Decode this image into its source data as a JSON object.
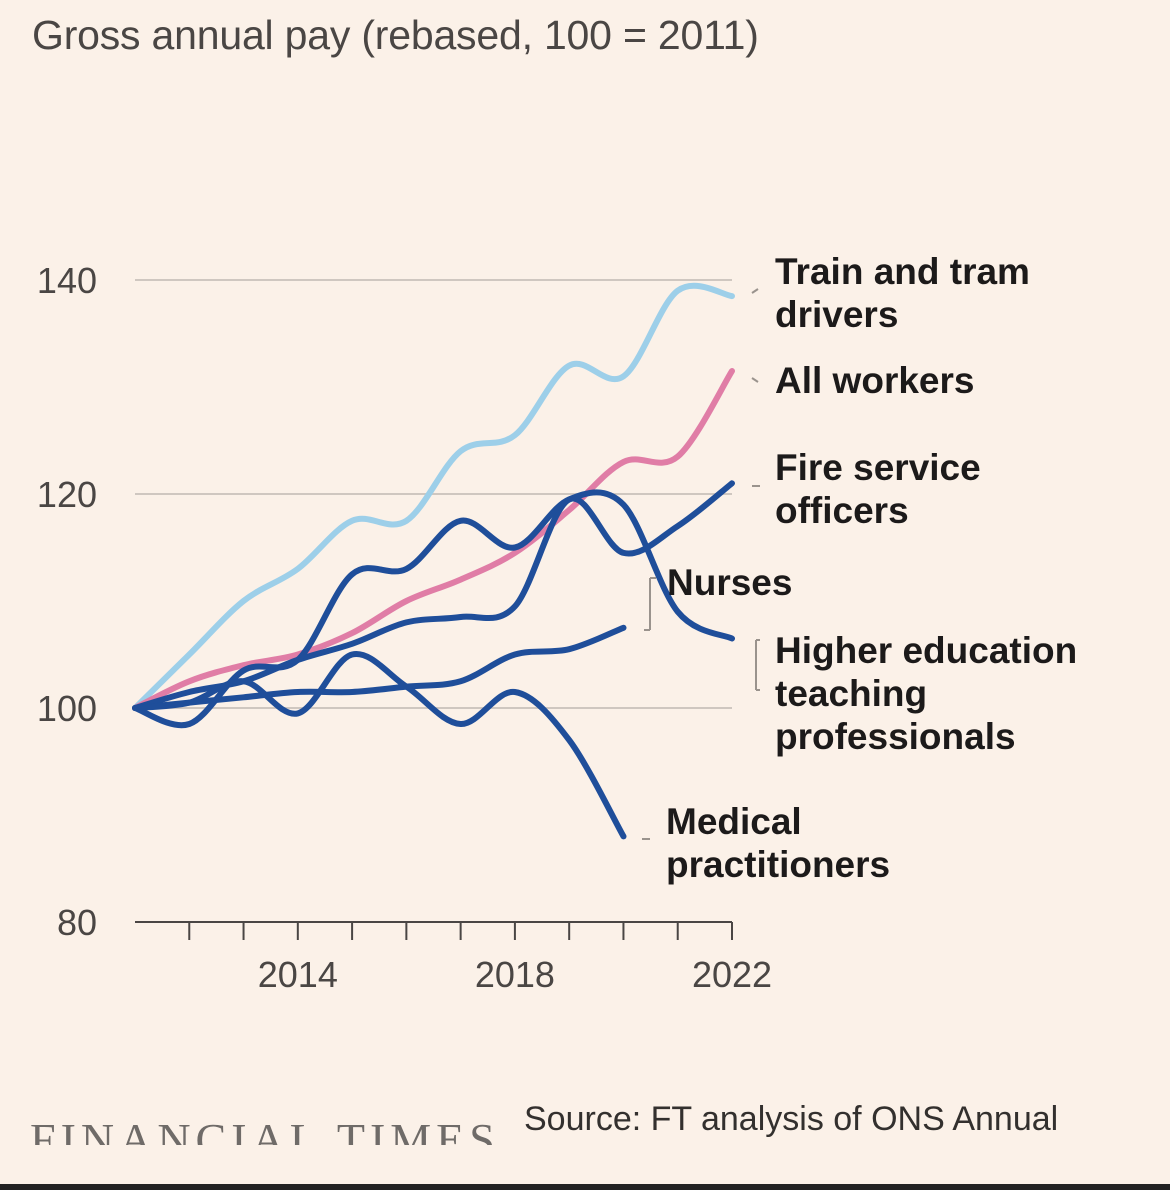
{
  "chart_data": {
    "type": "line",
    "title": "Gross annual pay (rebased, 100 = 2011)",
    "xlabel": "",
    "ylabel": "",
    "xlim": [
      2011,
      2022
    ],
    "ylim": [
      80,
      140
    ],
    "yticks": [
      80,
      100,
      120,
      140
    ],
    "xticks": [
      2012,
      2013,
      2014,
      2015,
      2016,
      2017,
      2018,
      2019,
      2020,
      2021,
      2022
    ],
    "xtick_labels": [
      {
        "year": 2014,
        "label": "2014"
      },
      {
        "year": 2018,
        "label": "2018"
      },
      {
        "year": 2022,
        "label": "2022"
      }
    ],
    "grid": true,
    "series": [
      {
        "name": "Train and tram drivers",
        "color": "#9dcfe9",
        "x": [
          2011,
          2012,
          2013,
          2014,
          2015,
          2016,
          2017,
          2018,
          2019,
          2020,
          2021,
          2022
        ],
        "values": [
          100,
          105,
          110,
          113,
          117.5,
          117.5,
          124,
          125.5,
          132,
          131,
          139,
          138.5
        ]
      },
      {
        "name": "All workers",
        "color": "#e07da6",
        "x": [
          2011,
          2012,
          2013,
          2014,
          2015,
          2016,
          2017,
          2018,
          2019,
          2020,
          2021,
          2022
        ],
        "values": [
          100,
          102.5,
          104,
          105,
          107,
          110,
          112,
          114.5,
          118.5,
          123,
          123.5,
          131.5
        ]
      },
      {
        "name": "Fire service officers",
        "color": "#1f4e9a",
        "x": [
          2011,
          2012,
          2013,
          2014,
          2015,
          2016,
          2017,
          2018,
          2019,
          2020,
          2021,
          2022
        ],
        "values": [
          100,
          101.5,
          102.5,
          104.5,
          106,
          108,
          108.5,
          109.5,
          119.5,
          114.5,
          117,
          121
        ]
      },
      {
        "name": "Nurses",
        "color": "#1f4e9a",
        "x": [
          2011,
          2012,
          2013,
          2014,
          2015,
          2016,
          2017,
          2018,
          2019,
          2020
        ],
        "values": [
          100,
          100.5,
          101,
          101.5,
          101.5,
          102,
          102.5,
          105,
          105.5,
          107.5
        ]
      },
      {
        "name": "Higher education teaching professionals",
        "color": "#1f4e9a",
        "x": [
          2011,
          2012,
          2013,
          2014,
          2015,
          2016,
          2017,
          2018,
          2019,
          2020,
          2021,
          2022
        ],
        "values": [
          100,
          98.5,
          103.5,
          104.5,
          112.5,
          113,
          117.5,
          115,
          119.5,
          119,
          109,
          106.5
        ]
      },
      {
        "name": "Medical practitioners",
        "color": "#1f4e9a",
        "x": [
          2011,
          2012,
          2013,
          2014,
          2015,
          2016,
          2017,
          2018,
          2019,
          2020
        ],
        "values": [
          100,
          100.5,
          102.5,
          99.5,
          105,
          102,
          98.5,
          101.5,
          97,
          88
        ]
      }
    ],
    "labels": [
      {
        "series": "Train and tram drivers",
        "lines": [
          "Train and tram",
          "drivers"
        ]
      },
      {
        "series": "All workers",
        "lines": [
          "All workers"
        ]
      },
      {
        "series": "Fire service officers",
        "lines": [
          "Fire service",
          "officers"
        ]
      },
      {
        "series": "Nurses",
        "lines": [
          "Nurses"
        ]
      },
      {
        "series": "Higher education teaching professionals",
        "lines": [
          "Higher education",
          "teaching",
          "professionals"
        ]
      },
      {
        "series": "Medical practitioners",
        "lines": [
          "Medical",
          "practitioners"
        ]
      }
    ]
  },
  "footer": {
    "brand": "FINANCIAL TIMES",
    "source": "Source: FT analysis of ONS Annual"
  }
}
